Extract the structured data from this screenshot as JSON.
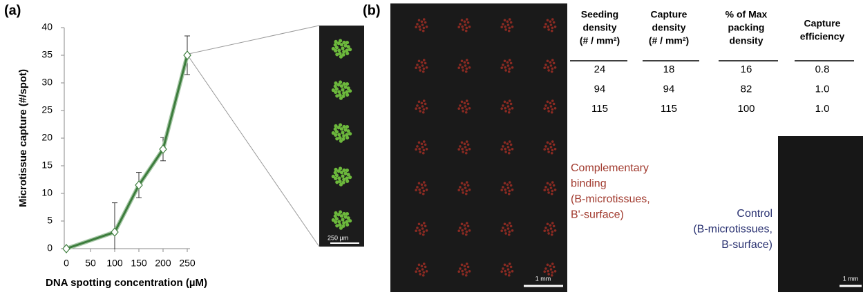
{
  "panel_labels": [
    "(a)",
    "(b)"
  ],
  "chart_data": {
    "type": "line",
    "x": [
      0,
      100,
      150,
      200,
      250
    ],
    "series": [
      {
        "values": [
          0,
          3,
          11.5,
          18,
          35
        ],
        "errors": [
          0,
          5.3,
          2.3,
          2.1,
          3.5
        ],
        "color": "#3d7d3d"
      }
    ],
    "xlim": [
      0,
      250
    ],
    "ylim": [
      0,
      40
    ],
    "xticks": [
      0,
      50,
      100,
      150,
      200,
      250
    ],
    "yticks": [
      0,
      5,
      10,
      15,
      20,
      25,
      30,
      35,
      40
    ],
    "x_label": "DNA spotting concentration (µM)",
    "y_label": "Microtissue capture (#/spot)",
    "grid": false
  },
  "images": {
    "spots_scale": "250 µm",
    "array_scale": "1 mm",
    "control_scale": "1 mm"
  },
  "table": {
    "header": [
      [
        "Seeding",
        "density",
        "(# / mm²)"
      ],
      [
        "Capture",
        "density",
        "(# / mm²)"
      ],
      [
        "% of Max",
        "packing",
        "density"
      ],
      [
        "Capture",
        "efficiency"
      ]
    ],
    "rows": [
      [
        "24",
        "18",
        "16",
        "0.8"
      ],
      [
        "94",
        "94",
        "82",
        "1.0"
      ],
      [
        "115",
        "115",
        "100",
        "1.0"
      ]
    ]
  },
  "captions": {
    "complementary": [
      "Complementary",
      "binding",
      "(B-microtissues,",
      "B'-surface)"
    ],
    "control": [
      "Control",
      "(B-microtissues,",
      "B-surface)"
    ]
  }
}
